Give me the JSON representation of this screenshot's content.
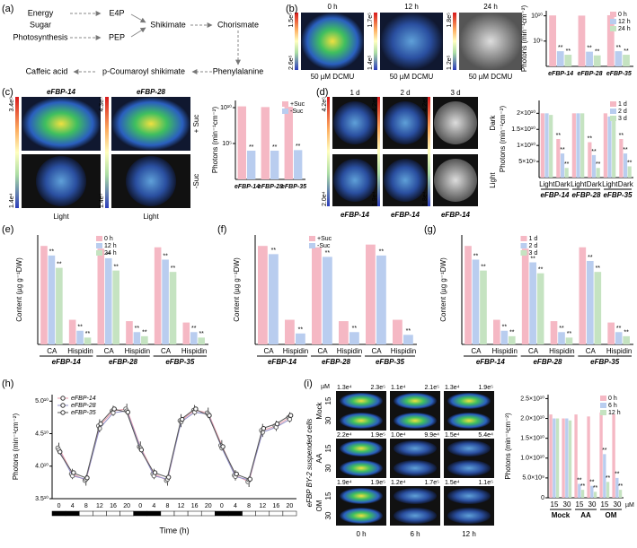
{
  "panel_a": {
    "label": "(a)",
    "nodes": [
      "Energy",
      "Sugar",
      "Photosynthesis",
      "E4P",
      "PEP",
      "Shikimate",
      "Chorismate",
      "Phenylalanine",
      "p-Coumaroyl shikimate",
      "Caffeic acid"
    ]
  },
  "panel_b": {
    "times": [
      "0 h",
      "12 h",
      "24 h"
    ],
    "treatment": [
      "50 µM DCMU",
      "50 µM DCMU",
      "50 µM DCMU"
    ],
    "scale_max": [
      "1.5e⁵",
      "1.7e⁵",
      "1.8e⁵"
    ],
    "scale_min": [
      "2.6e⁵",
      "1.4e⁵",
      "1.2e⁵"
    ]
  },
  "panel_c": {
    "lines": [
      "eFBP-14",
      "eFBP-28"
    ],
    "rows": [
      "+ Suc",
      "-Suc"
    ],
    "scale_max": [
      "3.4e⁵",
      "4.3e⁵"
    ],
    "scale_min": [
      "1.4e⁴",
      "1.4e⁵"
    ],
    "light": [
      "Light",
      "Light"
    ]
  },
  "panel_d": {
    "days": [
      "1 d",
      "2 d",
      "3 d"
    ],
    "scale_max": [
      "4.2e⁵",
      "4.2e⁵",
      "4.2e⁵"
    ],
    "scale_min": [
      "2.0e⁴",
      "1.9e⁴",
      "1.8e⁴"
    ],
    "lines": [
      "eFBP-14",
      "eFBP-14",
      "eFBP-14"
    ],
    "rows": [
      "Dark",
      "Light"
    ]
  },
  "panel_i": {
    "side": "eFBP BY-2 suspended cells",
    "treatments": [
      "Mock",
      "AA",
      "OM"
    ],
    "doses": [
      "15",
      "30"
    ],
    "unit": "µM",
    "times": [
      "0 h",
      "6 h",
      "12 h"
    ],
    "values": [
      [
        [
          "1.3e⁴",
          "2.3e⁵"
        ],
        [
          "1.1e⁴",
          "2.1e⁵"
        ],
        [
          "1.3e⁴",
          "1.9e⁵"
        ]
      ],
      [
        [
          "2.2e⁴",
          "1.9e⁵"
        ],
        [
          "1.0e⁴",
          "9.9e⁴"
        ],
        [
          "1.5e⁴",
          "5.4e⁴"
        ]
      ],
      [
        [
          "1.9e⁴",
          "1.9e⁵"
        ],
        [
          "1.2e⁴",
          "1.7e⁵"
        ],
        [
          "1.5e⁴",
          "1.1e⁵"
        ]
      ]
    ]
  },
  "chart_data": [
    {
      "type": "bar",
      "label": "(b)",
      "ylabel": "Photons (min⁻¹cm⁻²)",
      "log": true,
      "ylim": [
        1,
        100000000000
      ],
      "yticks": [
        {
          "value": 100000,
          "label": "10⁵"
        },
        {
          "value": 10000000000,
          "label": "10¹⁰"
        }
      ],
      "legend": "upper right",
      "categories": [
        "eFBP-14",
        "eFBP-28",
        "eFBP-35"
      ],
      "series": [
        {
          "name": "0 h",
          "color": "#f5b8c4",
          "values": [
            12000000000,
            11000000000,
            13000000000
          ]
        },
        {
          "name": "12 h",
          "color": "#b9cdef",
          "values": [
            1000,
            800,
            1000
          ],
          "significance": [
            "**",
            "**",
            "**"
          ]
        },
        {
          "name": "24 h",
          "color": "#c5e3c1",
          "values": [
            200,
            150,
            200
          ],
          "significance": [
            "**",
            "**",
            "**"
          ]
        }
      ]
    },
    {
      "type": "bar",
      "label": "(c)",
      "ylabel": "Photons (min⁻¹cm⁻²)",
      "log": true,
      "ylim": [
        1,
        100000000000
      ],
      "yticks": [
        {
          "value": 100000,
          "label": "10⁵"
        },
        {
          "value": 10000000000,
          "label": "10¹⁰"
        }
      ],
      "legend": "upper right",
      "categories": [
        "eFBP-14",
        "eFBP-28",
        "eFBP-35"
      ],
      "series": [
        {
          "name": "+Suc",
          "color": "#f5b8c4",
          "values": [
            15000000000,
            12000000000,
            13000000000
          ]
        },
        {
          "name": "-Suc",
          "color": "#b9cdef",
          "values": [
            10000,
            10000,
            12000
          ],
          "significance": [
            "**",
            "**",
            "**"
          ]
        }
      ]
    },
    {
      "type": "bar",
      "label": "(d)",
      "ylabel": "Photons (min⁻¹cm⁻²)",
      "ylim": [
        0,
        24000000000
      ],
      "yticks": [
        {
          "value": 5000000000,
          "label": "5×10⁹"
        },
        {
          "value": 10000000000,
          "label": "1×10¹⁰"
        },
        {
          "value": 15000000000,
          "label": "1.5×10¹⁰"
        },
        {
          "value": 20000000000,
          "label": "2×10¹⁰"
        }
      ],
      "legend": "upper right",
      "categories": [
        "Light",
        "Dark",
        "Light",
        "Dark",
        "Light",
        "Dark"
      ],
      "groups": [
        "eFBP-14",
        "eFBP-28",
        "eFBP-35"
      ],
      "series": [
        {
          "name": "1 d",
          "color": "#f5b8c4",
          "values": [
            20000000000,
            12000000000,
            20000000000,
            11000000000,
            20000000000,
            12000000000
          ],
          "significance": [
            null,
            "**",
            null,
            "**",
            null,
            "**"
          ]
        },
        {
          "name": "2 d",
          "color": "#b9cdef",
          "values": [
            20000000000,
            7500000000,
            20000000000,
            7000000000,
            19000000000,
            7500000000
          ],
          "significance": [
            null,
            "**",
            null,
            "**",
            null,
            "**"
          ]
        },
        {
          "name": "3 d",
          "color": "#c5e3c1",
          "values": [
            19500000000,
            3000000000,
            20000000000,
            3000000000,
            19000000000,
            3500000000
          ],
          "significance": [
            null,
            "**",
            null,
            "**",
            null,
            "**"
          ]
        }
      ]
    },
    {
      "type": "bar",
      "label": "(e)",
      "ylabel": "Content (µg g⁻¹DW)",
      "ylim": [
        0,
        8
      ],
      "legend": "upper center",
      "categories": [
        "CA",
        "Hispidin",
        "CA",
        "Hispidin",
        "CA",
        "Hispidin"
      ],
      "groups": [
        "eFBP-14",
        "eFBP-28",
        "eFBP-35"
      ],
      "series": [
        {
          "name": "0 h",
          "color": "#f5b8c4",
          "values": [
            7.2,
            1.8,
            7.0,
            1.7,
            7.1,
            1.6
          ]
        },
        {
          "name": "12 h",
          "color": "#b9cdef",
          "values": [
            6.5,
            1.0,
            6.3,
            0.9,
            6.2,
            0.9
          ],
          "significance": [
            "**",
            "**",
            "**",
            "**",
            "**",
            "**"
          ]
        },
        {
          "name": "24 h",
          "color": "#c5e3c1",
          "values": [
            5.6,
            0.5,
            5.4,
            0.6,
            5.3,
            0.5
          ],
          "significance": [
            "**",
            "**",
            "**",
            "**",
            "**",
            "**"
          ]
        }
      ]
    },
    {
      "type": "bar",
      "label": "(f)",
      "ylabel": "Content (µg g⁻¹DW)",
      "ylim": [
        0,
        8
      ],
      "legend": "upper center",
      "categories": [
        "CA",
        "Hispidin",
        "CA",
        "Hispidin",
        "CA",
        "Hispidin"
      ],
      "groups": [
        "eFBP-14",
        "eFBP-28",
        "eFBP-35"
      ],
      "series": [
        {
          "name": "+Suc",
          "color": "#f5b8c4",
          "values": [
            7.2,
            1.8,
            7.1,
            1.7,
            7.3,
            1.8
          ]
        },
        {
          "name": "-Suc",
          "color": "#b9cdef",
          "values": [
            6.6,
            0.8,
            6.4,
            0.9,
            6.5,
            0.7
          ],
          "significance": [
            "**",
            "**",
            "**",
            "**",
            "**",
            "**"
          ]
        }
      ]
    },
    {
      "type": "bar",
      "label": "(g)",
      "ylabel": "Content (µg g⁻¹DW)",
      "ylim": [
        0,
        8
      ],
      "legend": "upper center",
      "categories": [
        "CA",
        "Hispidin",
        "CA",
        "Hispidin",
        "CA",
        "Hispidin"
      ],
      "groups": [
        "eFBP-14",
        "eFBP-28",
        "eFBP-35"
      ],
      "series": [
        {
          "name": "1 d",
          "color": "#f5b8c4",
          "values": [
            7.2,
            1.8,
            7.0,
            1.7,
            7.1,
            1.6
          ]
        },
        {
          "name": "2 d",
          "color": "#b9cdef",
          "values": [
            6.2,
            1.0,
            6.0,
            0.9,
            6.1,
            0.9
          ],
          "significance": [
            "**",
            "**",
            "**",
            "**",
            "**",
            "**"
          ]
        },
        {
          "name": "3 d",
          "color": "#c5e3c1",
          "values": [
            5.4,
            0.6,
            5.2,
            0.5,
            5.3,
            0.6
          ],
          "significance": [
            "**",
            "**",
            "**",
            "**",
            "**",
            "**"
          ]
        }
      ]
    },
    {
      "type": "line",
      "label": "(h)",
      "ylabel": "Photons (min⁻¹cm⁻²)",
      "xlabel": "Time (h)",
      "ylim": [
        3.5,
        5.1
      ],
      "yticks": [
        {
          "value": 3.5,
          "label": "3.5¹⁰"
        },
        {
          "value": 4.0,
          "label": "4.0¹⁰"
        },
        {
          "value": 4.5,
          "label": "4.5¹⁰"
        },
        {
          "value": 5.0,
          "label": "5.0¹⁰"
        }
      ],
      "legend": "upper left",
      "categories": [
        0,
        4,
        8,
        12,
        16,
        20,
        0,
        4,
        8,
        12,
        16,
        20,
        0,
        4,
        8,
        12,
        16,
        20
      ],
      "series": [
        {
          "name": "eFBP-14",
          "color": "#e89aa8",
          "values": [
            4.28,
            3.88,
            3.78,
            4.62,
            4.85,
            4.88,
            4.3,
            3.88,
            3.78,
            4.7,
            4.86,
            4.82,
            4.32,
            3.86,
            3.76,
            4.55,
            4.62,
            4.75
          ],
          "errors": [
            0.08,
            0.08,
            0.08,
            0.1,
            0.08,
            0.08,
            0.08,
            0.08,
            0.08,
            0.1,
            0.08,
            0.08,
            0.08,
            0.08,
            0.08,
            0.1,
            0.08,
            0.08
          ]
        },
        {
          "name": "eFBP-28",
          "color": "#8f8fc8",
          "values": [
            4.25,
            3.85,
            3.8,
            4.58,
            4.82,
            4.85,
            4.28,
            3.85,
            3.8,
            4.68,
            4.83,
            4.8,
            4.28,
            3.84,
            3.79,
            4.52,
            4.6,
            4.72
          ]
        },
        {
          "name": "eFBP-35",
          "color": "#555555",
          "values": [
            4.22,
            3.9,
            3.82,
            4.65,
            4.88,
            4.83,
            4.25,
            3.9,
            3.83,
            4.72,
            4.88,
            4.78,
            4.3,
            3.88,
            3.8,
            4.58,
            4.65,
            4.78
          ]
        }
      ]
    },
    {
      "type": "bar",
      "label": "(i)",
      "ylabel": "Photons (min⁻¹cm⁻²)",
      "ylim": [
        0,
        26000000000
      ],
      "yticks": [
        0,
        {
          "value": 5000000000,
          "label": "5.0×10⁹"
        },
        {
          "value": 10000000000,
          "label": "1.0×10¹⁰"
        },
        {
          "value": 15000000000,
          "label": "1.5×10¹⁰"
        },
        {
          "value": 20000000000,
          "label": "2.0×10¹⁰"
        },
        {
          "value": 25000000000,
          "label": "2.5×10¹⁰"
        }
      ],
      "legend": "upper right",
      "categories": [
        "15",
        "30",
        "15",
        "30",
        "15",
        "30"
      ],
      "groups": [
        "Mock",
        "AA",
        "OM"
      ],
      "unit": "µM",
      "series": [
        {
          "name": "0 h",
          "color": "#f5b8c4",
          "values": [
            21000000000,
            20000000000,
            21000000000,
            20500000000,
            21500000000,
            21000000000
          ]
        },
        {
          "name": "6 h",
          "color": "#b9cdef",
          "values": [
            20000000000,
            20000000000,
            3500000000,
            3000000000,
            11000000000,
            5000000000
          ],
          "significance": [
            null,
            null,
            "**",
            "**",
            "**",
            "**"
          ]
        },
        {
          "name": "12 h",
          "color": "#c5e3c1",
          "values": [
            20000000000,
            19500000000,
            2000000000,
            1500000000,
            4000000000,
            2000000000
          ],
          "significance": [
            null,
            null,
            "**",
            "**",
            "**",
            "**"
          ]
        }
      ]
    }
  ]
}
